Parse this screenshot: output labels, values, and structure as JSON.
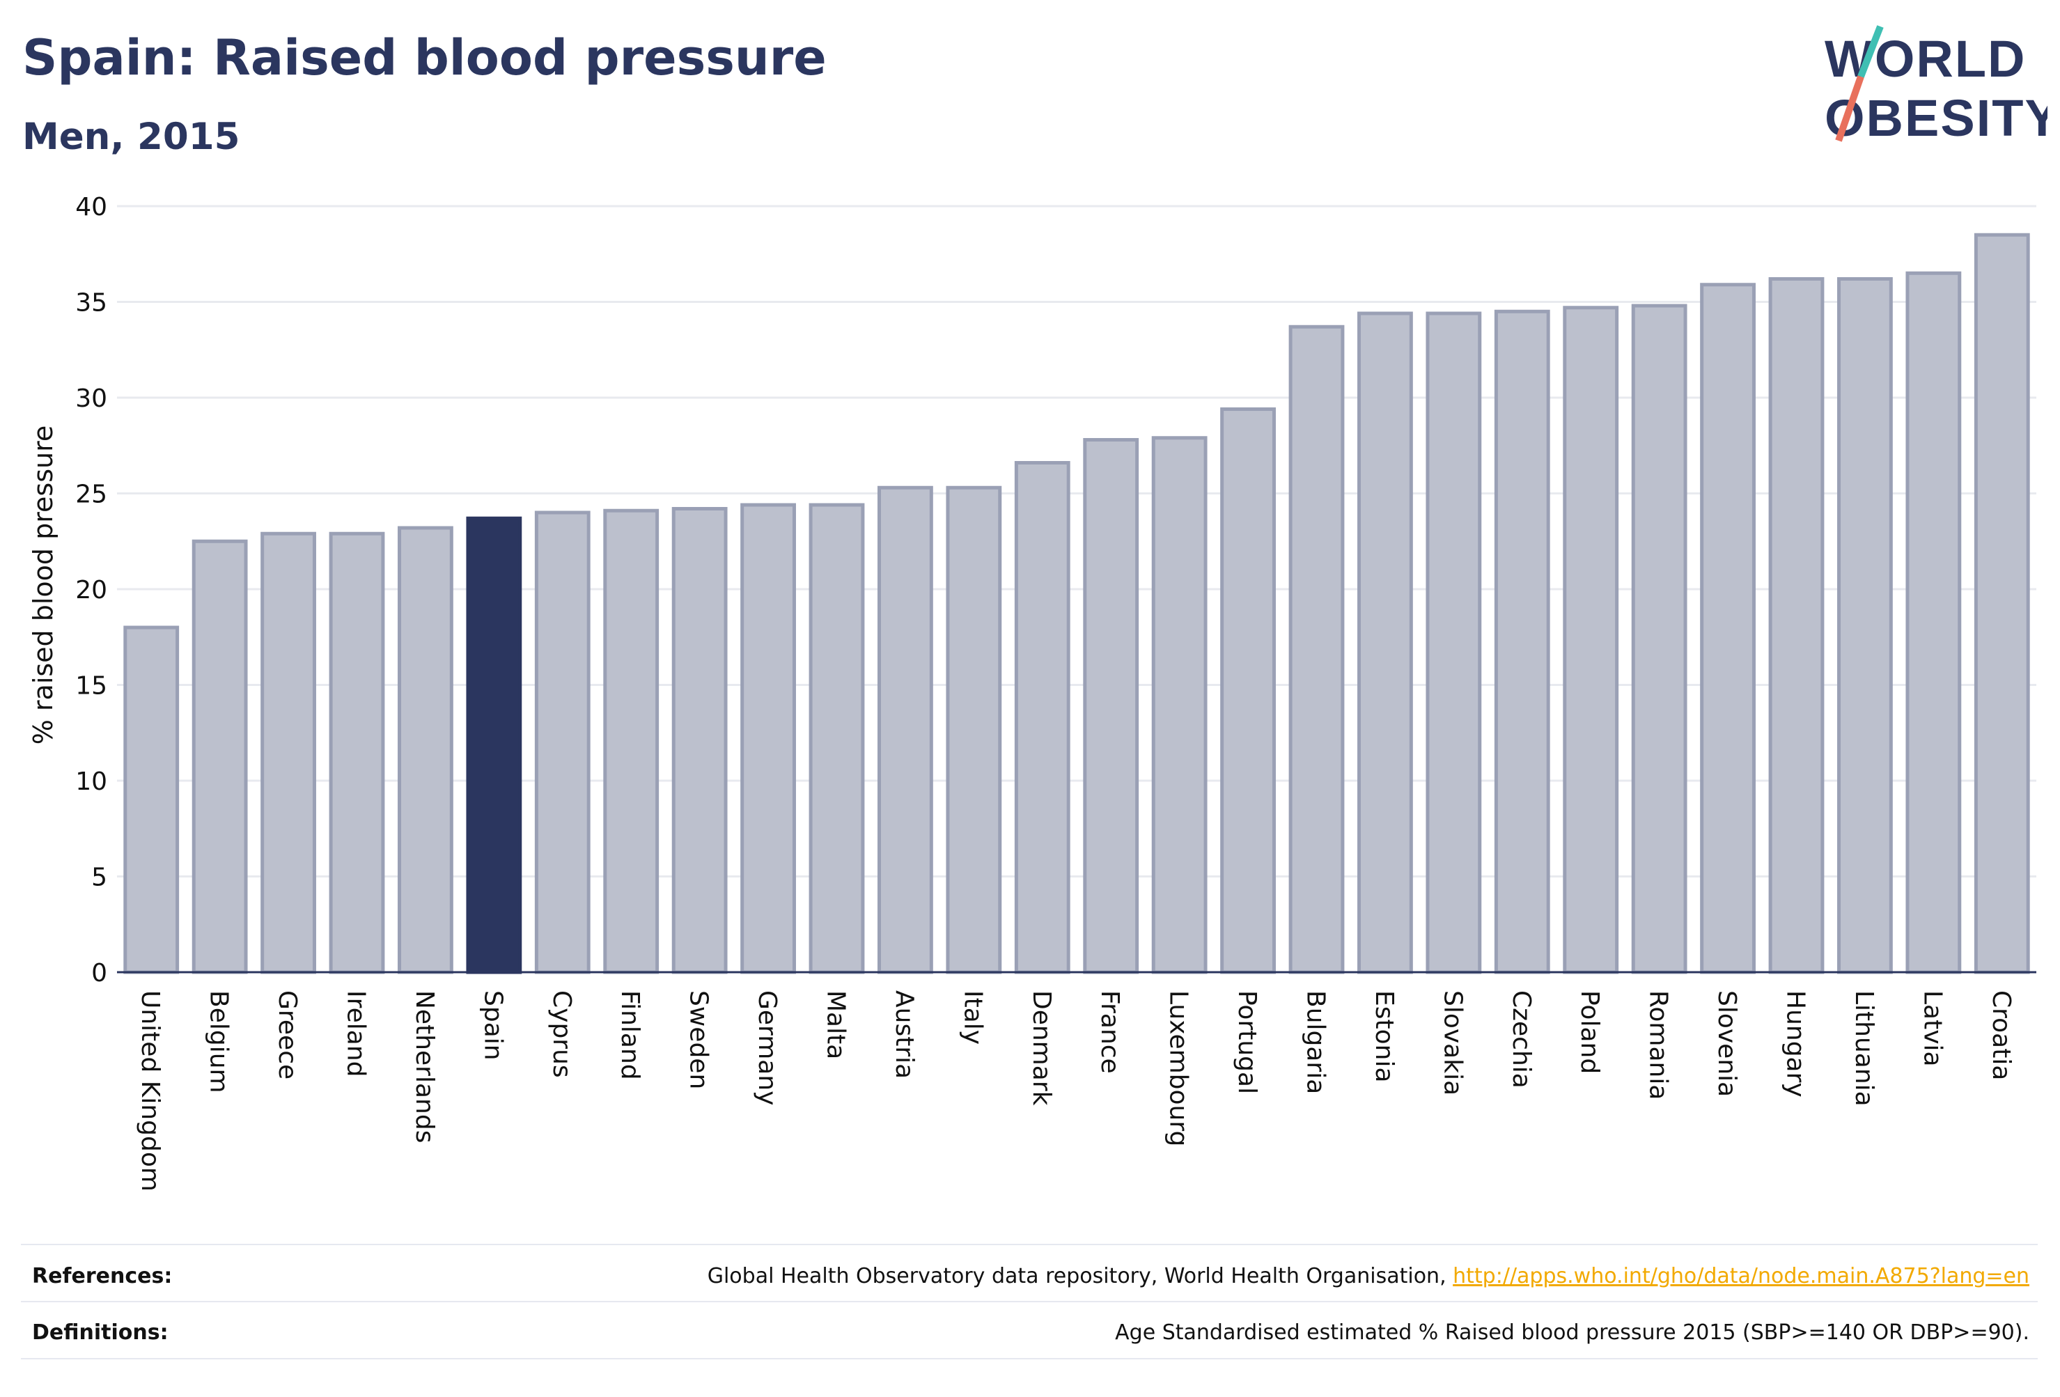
{
  "header": {
    "title": "Spain: Raised blood pressure",
    "subtitle": "Men, 2015"
  },
  "logo": {
    "line1": "WORLD",
    "line2": "OBESITY"
  },
  "colors": {
    "highlight": "#2b365f",
    "bar_fill": "#bcc0cd",
    "bar_stroke": "#9aa0b5",
    "grid": "#e8eaef",
    "axis": "#2b365f",
    "logo_teal": "#3fbfb3",
    "logo_coral": "#e8705c"
  },
  "chart_data": {
    "type": "bar",
    "title": "Spain: Raised blood pressure",
    "subtitle": "Men, 2015",
    "xlabel": "",
    "ylabel": "% raised blood pressure",
    "ylim": [
      0,
      40
    ],
    "yticks": [
      0,
      5,
      10,
      15,
      20,
      25,
      30,
      35,
      40
    ],
    "grid": true,
    "highlight": "Spain",
    "categories": [
      "United Kingdom",
      "Belgium",
      "Greece",
      "Ireland",
      "Netherlands",
      "Spain",
      "Cyprus",
      "Finland",
      "Sweden",
      "Germany",
      "Malta",
      "Austria",
      "Italy",
      "Denmark",
      "France",
      "Luxembourg",
      "Portugal",
      "Bulgaria",
      "Estonia",
      "Slovakia",
      "Czechia",
      "Poland",
      "Romania",
      "Slovenia",
      "Hungary",
      "Lithuania",
      "Latvia",
      "Croatia"
    ],
    "values": [
      18.0,
      22.5,
      22.9,
      22.9,
      23.2,
      23.7,
      24.0,
      24.1,
      24.2,
      24.4,
      24.4,
      25.3,
      25.3,
      26.6,
      27.8,
      27.9,
      29.4,
      33.7,
      34.4,
      34.4,
      34.5,
      34.7,
      34.8,
      35.9,
      36.2,
      36.2,
      36.5,
      38.5
    ]
  },
  "footer": {
    "references_label": "References:",
    "references_text": "Global Health Observatory data repository, World Health Organisation, ",
    "references_link": "http://apps.who.int/gho/data/node.main.A875?lang=en",
    "definitions_label": "Definitions:",
    "definitions_text": "Age Standardised estimated % Raised blood pressure 2015 (SBP>=140 OR DBP>=90)."
  }
}
